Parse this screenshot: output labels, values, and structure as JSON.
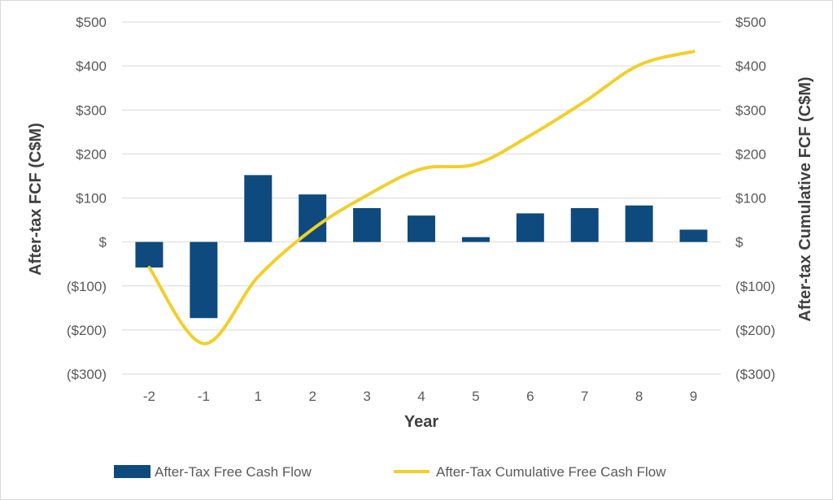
{
  "chart_data": {
    "type": "bar",
    "categories": [
      "-2",
      "-1",
      "1",
      "2",
      "3",
      "4",
      "5",
      "6",
      "7",
      "8",
      "9"
    ],
    "series": [
      {
        "name": "After-Tax Free Cash Flow",
        "type": "bar",
        "axis": "left",
        "color": "#0e4a7d",
        "values": [
          -58,
          -173,
          152,
          108,
          77,
          60,
          11,
          65,
          77,
          83,
          28
        ]
      },
      {
        "name": "After-Tax Cumulative Free Cash Flow",
        "type": "line",
        "axis": "right",
        "color": "#f2cf2a",
        "values": [
          -58,
          -231,
          -79,
          29,
          106,
          166,
          177,
          242,
          319,
          402,
          433
        ]
      }
    ],
    "xlabel": "Year",
    "ylabel": "After-tax FCF (C$M)",
    "ylabel_right": "After-tax Cumulative FCF (C$M)",
    "ylim": [
      -300,
      500
    ],
    "ylim_right": [
      -300,
      500
    ],
    "yticks": [
      "$500",
      "$400",
      "$300",
      "$200",
      "$100",
      "$",
      "($100)",
      "($200)",
      "($300)"
    ],
    "yticks_right": [
      "$500",
      "$400",
      "$300",
      "$200",
      "$100",
      "$",
      "($100)",
      "($200)",
      "($300)"
    ],
    "ytick_values": [
      500,
      400,
      300,
      200,
      100,
      0,
      -100,
      -200,
      -300
    ],
    "grid": true,
    "legend": "bottom"
  }
}
